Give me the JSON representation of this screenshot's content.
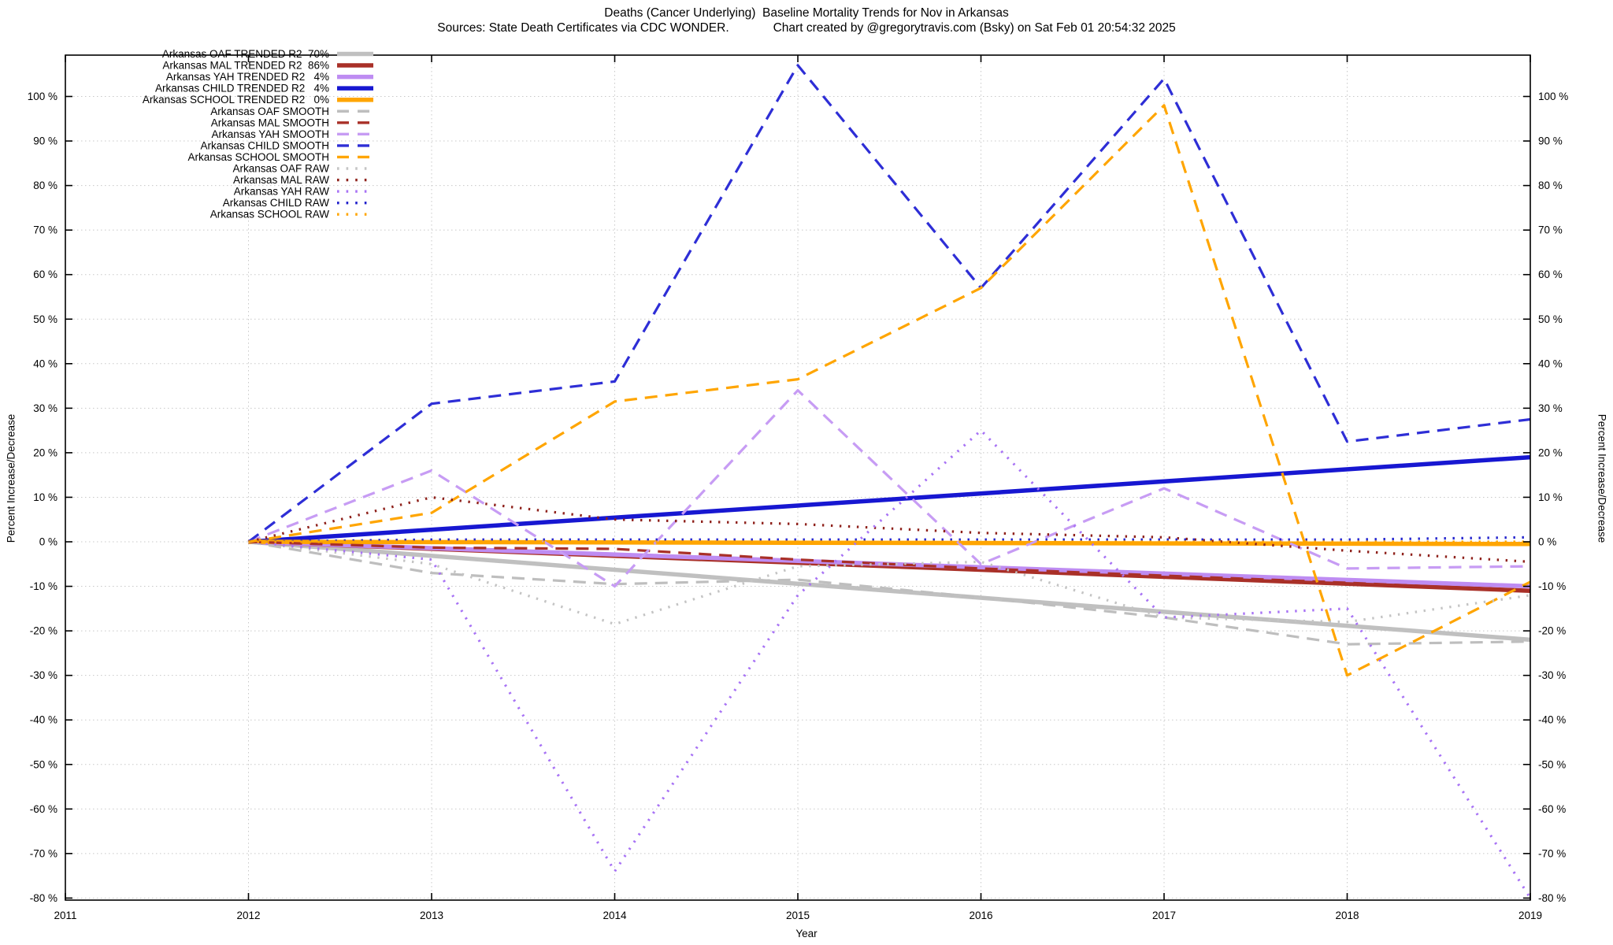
{
  "header": {
    "title": "Deaths (Cancer Underlying)  Baseline Mortality Trends for Nov in Arkansas",
    "subtitle": "Sources: State Death Certificates via CDC WONDER.             Chart created by @gregorytravis.com (Bsky) on Sat Feb 01 20:54:32 2025"
  },
  "chart_data": {
    "type": "line",
    "title": "Deaths (Cancer Underlying)  Baseline Mortality Trends for Nov in Arkansas",
    "xlabel": "Year",
    "ylabel": "Percent Increase/Decrease",
    "y2label": "Percent Increase/Decrease",
    "grid": true,
    "legend_position": "top-left-inside",
    "x_ticks": [
      2011,
      2012,
      2013,
      2014,
      2015,
      2016,
      2017,
      2018,
      2019
    ],
    "y_ticks": [
      -80,
      -70,
      -60,
      -50,
      -40,
      -30,
      -20,
      -10,
      0,
      10,
      20,
      30,
      40,
      50,
      60,
      70,
      80,
      90,
      100
    ],
    "y_tick_suffix": " %",
    "xlim": [
      2011,
      2019
    ],
    "ylim_pct": [
      -80.4,
      109.2
    ],
    "series": [
      {
        "name": "Arkansas OAF TRENDED R2  70%",
        "group": "trended",
        "style": "solid",
        "color": "#c0c0c0",
        "x": [
          2012,
          2019
        ],
        "values": [
          0,
          -22
        ]
      },
      {
        "name": "Arkansas MAL TRENDED R2  86%",
        "group": "trended",
        "style": "solid",
        "color": "#a93028",
        "x": [
          2012,
          2019
        ],
        "values": [
          0,
          -11
        ]
      },
      {
        "name": "Arkansas YAH TRENDED R2   4%",
        "group": "trended",
        "style": "solid",
        "color": "#be8cf2",
        "x": [
          2012,
          2019
        ],
        "values": [
          0,
          -10
        ]
      },
      {
        "name": "Arkansas CHILD TRENDED R2   4%",
        "group": "trended",
        "style": "solid",
        "color": "#1717d1",
        "x": [
          2012,
          2019
        ],
        "values": [
          0,
          19
        ]
      },
      {
        "name": "Arkansas SCHOOL TRENDED R2   0%",
        "group": "trended",
        "style": "solid",
        "color": "#ffa500",
        "x": [
          2012,
          2019
        ],
        "values": [
          0,
          -0.5
        ]
      },
      {
        "name": "Arkansas OAF SMOOTH",
        "group": "smooth",
        "style": "dashed",
        "color": "#bebebe",
        "x": [
          2012,
          2013,
          2014,
          2015,
          2016,
          2017,
          2018,
          2019
        ],
        "values": [
          0,
          -7,
          -9.5,
          -8.5,
          -12.5,
          -17,
          -23,
          -22.4
        ]
      },
      {
        "name": "Arkansas MAL SMOOTH",
        "group": "smooth",
        "style": "dashed",
        "color": "#a93028",
        "x": [
          2012,
          2013,
          2014,
          2015,
          2016,
          2017,
          2018,
          2019
        ],
        "values": [
          0,
          -1.3,
          -1.6,
          -4,
          -6,
          -7.6,
          -9.2,
          -11
        ]
      },
      {
        "name": "Arkansas YAH SMOOTH",
        "group": "smooth",
        "style": "dashed",
        "color": "#c79cf4",
        "x": [
          2012,
          2013,
          2014,
          2015,
          2016,
          2017,
          2018,
          2019
        ],
        "values": [
          0,
          16,
          -10,
          34,
          -5,
          12,
          -6,
          -5.5
        ]
      },
      {
        "name": "Arkansas CHILD SMOOTH",
        "group": "smooth",
        "style": "dashed",
        "color": "#2e2ed6",
        "x": [
          2012,
          2013,
          2014,
          2015,
          2016,
          2017,
          2018,
          2019
        ],
        "values": [
          0,
          31,
          36,
          107,
          57,
          104,
          22.5,
          27.5
        ]
      },
      {
        "name": "Arkansas SCHOOL SMOOTH",
        "group": "smooth",
        "style": "dashed",
        "color": "#ffa500",
        "x": [
          2012,
          2013,
          2014,
          2015,
          2016,
          2017,
          2018,
          2019
        ],
        "values": [
          0,
          6.5,
          31.5,
          36.5,
          57,
          98,
          -30,
          -9
        ]
      },
      {
        "name": "Arkansas OAF RAW",
        "group": "raw",
        "style": "dotted",
        "color": "#c4c4c4",
        "x": [
          2012,
          2013,
          2014,
          2015,
          2016,
          2017,
          2018,
          2019
        ],
        "values": [
          0,
          -5,
          -18.5,
          -5.5,
          -4.5,
          -17,
          -18,
          -12
        ]
      },
      {
        "name": "Arkansas MAL RAW",
        "group": "raw",
        "style": "dotted",
        "color": "#8f221c",
        "x": [
          2012,
          2013,
          2014,
          2015,
          2016,
          2017,
          2018,
          2019
        ],
        "values": [
          0,
          10,
          5,
          4,
          2,
          1,
          -2,
          -4.5
        ]
      },
      {
        "name": "Arkansas YAH RAW",
        "group": "raw",
        "style": "dotted",
        "color": "#a873f5",
        "x": [
          2012,
          2013,
          2014,
          2015,
          2016,
          2017,
          2018,
          2019
        ],
        "values": [
          0,
          -4,
          -74,
          -12,
          25,
          -17,
          -15,
          -80
        ]
      },
      {
        "name": "Arkansas CHILD RAW",
        "group": "raw",
        "style": "dotted",
        "color": "#2222cc",
        "x": [
          2012,
          2013,
          2014,
          2015,
          2016,
          2017,
          2018,
          2019
        ],
        "values": [
          0,
          0.5,
          0.5,
          0.5,
          0.5,
          0.5,
          0.5,
          1
        ]
      },
      {
        "name": "Arkansas SCHOOL RAW",
        "group": "raw",
        "style": "dotted",
        "color": "#ffa500",
        "x": [
          2012,
          2013,
          2014,
          2015,
          2016,
          2017,
          2018,
          2019
        ],
        "values": [
          0,
          0,
          0,
          0,
          0,
          0,
          0,
          0
        ]
      }
    ]
  },
  "axes": {
    "x_label": "Year",
    "y_label_left": "Percent Increase/Decrease",
    "y_label_right": "Percent Increase/Decrease"
  },
  "colors": {
    "background": "#ffffff",
    "border": "#000000",
    "grid": "#c8c8c8",
    "text": "#000000"
  }
}
